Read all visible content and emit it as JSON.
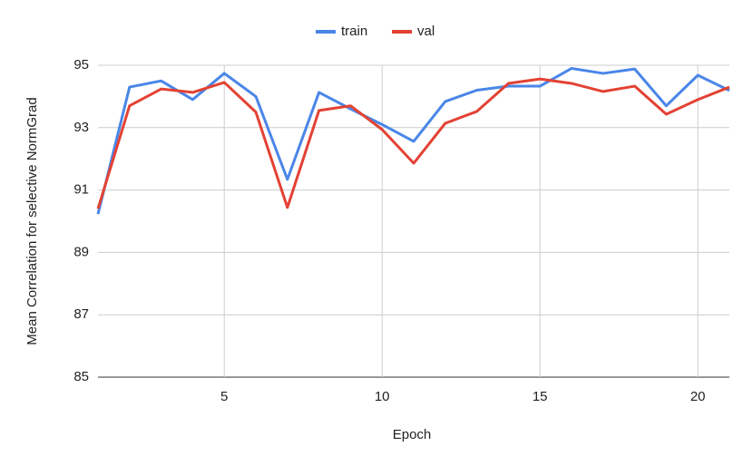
{
  "chart_data": {
    "type": "line",
    "xlabel": "Epoch",
    "ylabel": "Mean Correlation for selective NormGrad",
    "x": [
      1,
      2,
      3,
      4,
      5,
      6,
      7,
      8,
      9,
      10,
      11,
      12,
      13,
      14,
      15,
      16,
      17,
      18,
      19,
      20,
      21
    ],
    "series": [
      {
        "name": "train",
        "color": "#4a86e8",
        "values": [
          90.23,
          94.3,
          94.5,
          93.9,
          94.74,
          94.0,
          91.34,
          94.13,
          93.6,
          93.1,
          92.56,
          93.84,
          94.2,
          94.33,
          94.33,
          94.9,
          94.74,
          94.88,
          93.7,
          94.68,
          94.19
        ]
      },
      {
        "name": "val",
        "color": "#e34234",
        "values": [
          90.4,
          93.7,
          94.24,
          94.13,
          94.45,
          93.5,
          90.44,
          93.55,
          93.7,
          92.94,
          91.86,
          93.14,
          93.52,
          94.42,
          94.56,
          94.42,
          94.16,
          94.33,
          93.43,
          93.9,
          94.3
        ]
      }
    ],
    "xlim": [
      1,
      21
    ],
    "xticks": [
      5,
      10,
      15,
      20
    ],
    "ylim": [
      85,
      95
    ],
    "yticks": [
      85,
      87,
      89,
      91,
      93,
      95
    ],
    "grid": true,
    "legend": "top"
  }
}
